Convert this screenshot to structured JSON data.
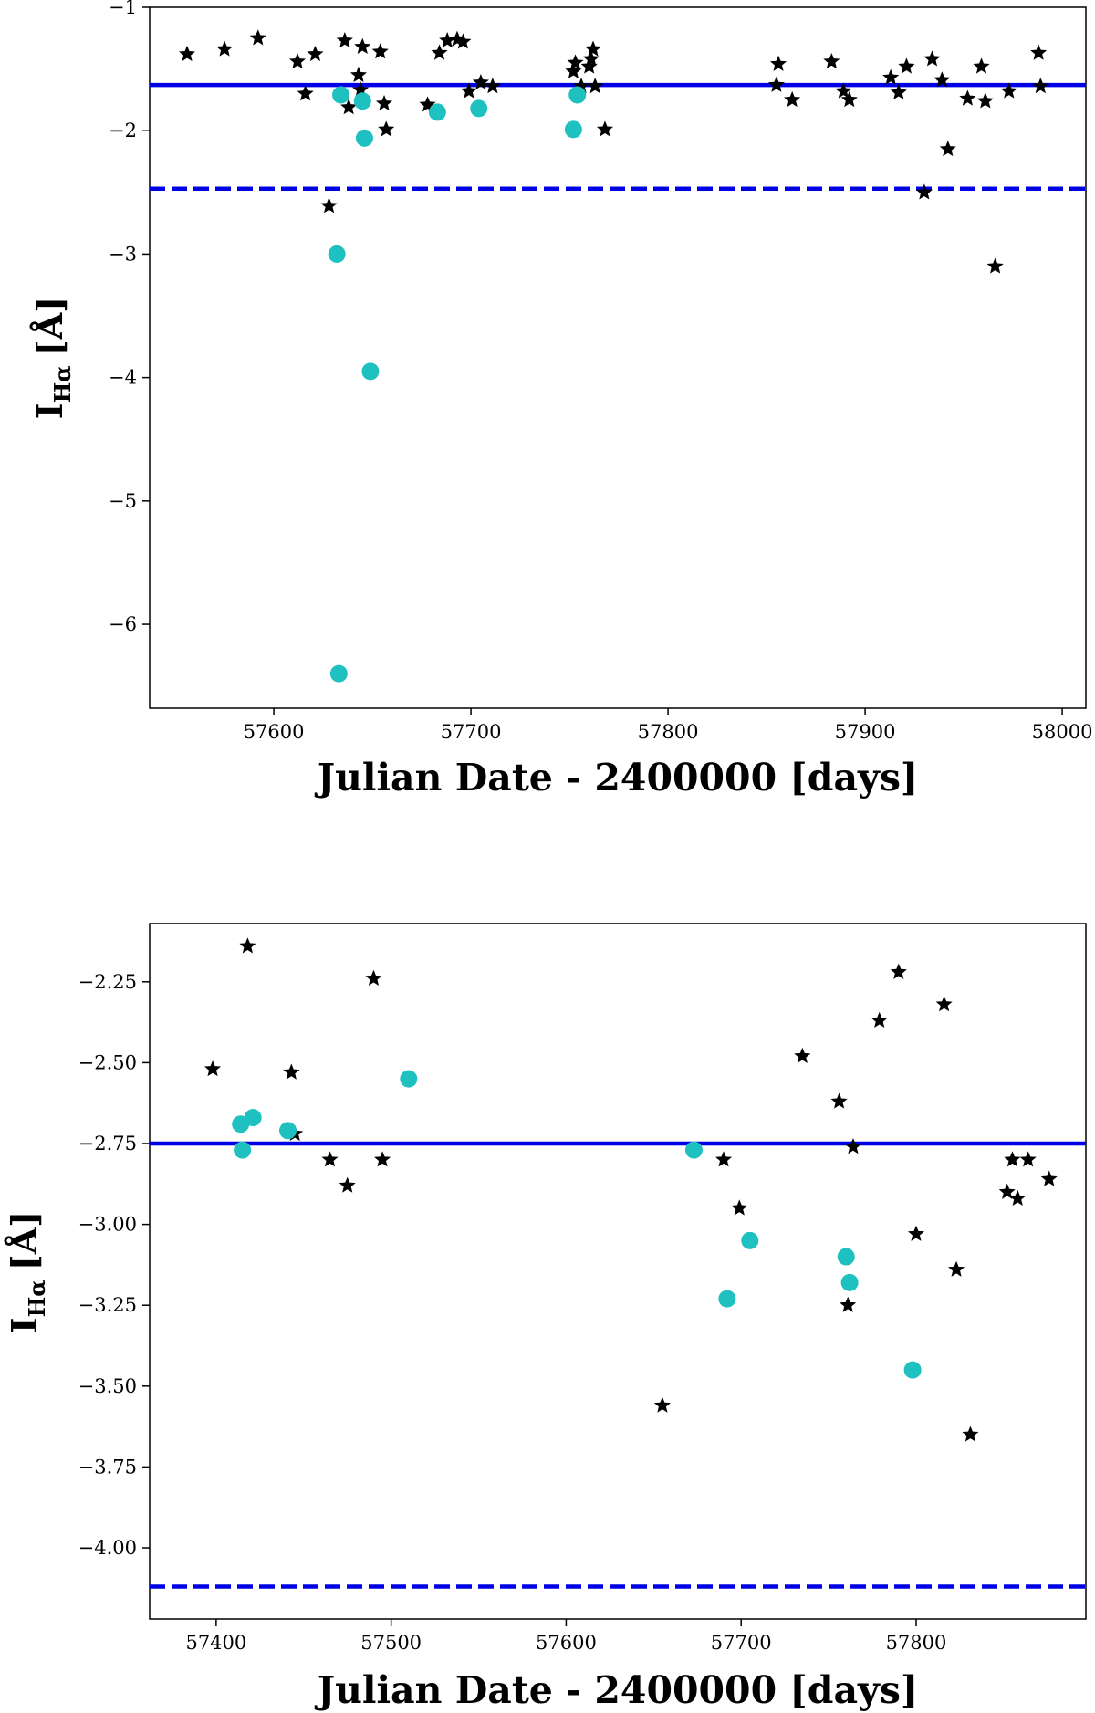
{
  "chart_data": [
    {
      "type": "scatter",
      "xlabel": "Julian Date - 2400000 [days]",
      "ylabel": "I_Hα [Å]",
      "ylabel_parts": {
        "symbol": "I",
        "subscript": "Hα",
        "unit": "[Å]"
      },
      "xlim": [
        57537,
        58012
      ],
      "ylim": [
        -6.68,
        -1.0
      ],
      "xticks": [
        57600,
        57700,
        57800,
        57900,
        58000
      ],
      "yticks": [
        -1,
        -2,
        -3,
        -4,
        -5,
        -6
      ],
      "hlines": [
        {
          "name": "mean",
          "y": -1.63,
          "style": "solid",
          "color": "#0000e6"
        },
        {
          "name": "threshold",
          "y": -2.47,
          "style": "dashed",
          "color": "#0000e6"
        }
      ],
      "series": [
        {
          "name": "black-stars",
          "marker": "star",
          "color": "#000000",
          "x": [
            57556,
            57575,
            57592,
            57612,
            57616,
            57621,
            57628,
            57636,
            57638,
            57643,
            57644,
            57645,
            57654,
            57656,
            57657,
            57678,
            57684,
            57688,
            57693,
            57696,
            57699,
            57705,
            57711,
            57752,
            57753,
            57756,
            57760,
            57761,
            57762,
            57763,
            57768,
            57855,
            57856,
            57863,
            57883,
            57889,
            57892,
            57913,
            57917,
            57921,
            57930,
            57934,
            57939,
            57942,
            57952,
            57959,
            57961,
            57966,
            57973,
            57988,
            57989
          ],
          "y": [
            -1.38,
            -1.34,
            -1.25,
            -1.44,
            -1.7,
            -1.38,
            -2.61,
            -1.27,
            -1.81,
            -1.55,
            -1.67,
            -1.32,
            -1.36,
            -1.78,
            -1.99,
            -1.79,
            -1.37,
            -1.27,
            -1.26,
            -1.28,
            -1.68,
            -1.61,
            -1.64,
            -1.52,
            -1.45,
            -1.64,
            -1.48,
            -1.42,
            -1.34,
            -1.64,
            -1.99,
            -1.63,
            -1.46,
            -1.75,
            -1.44,
            -1.68,
            -1.75,
            -1.57,
            -1.69,
            -1.48,
            -2.5,
            -1.42,
            -1.59,
            -2.15,
            -1.74,
            -1.48,
            -1.76,
            -3.1,
            -1.68,
            -1.37,
            -1.64
          ]
        },
        {
          "name": "cyan-circles",
          "marker": "circle",
          "color": "#1ec0c0",
          "x": [
            57632,
            57633,
            57634,
            57645,
            57646,
            57649,
            57683,
            57704,
            57752,
            57754
          ],
          "y": [
            -3.0,
            -6.4,
            -1.71,
            -1.76,
            -2.06,
            -3.95,
            -1.85,
            -1.82,
            -1.99,
            -1.71
          ]
        }
      ]
    },
    {
      "type": "scatter",
      "xlabel": "Julian Date - 2400000 [days]",
      "ylabel": "I_Hα [Å]",
      "ylabel_parts": {
        "symbol": "I",
        "subscript": "Hα",
        "unit": "[Å]"
      },
      "xlim": [
        57362,
        57897
      ],
      "ylim": [
        -4.22,
        -2.07
      ],
      "xticks": [
        57400,
        57500,
        57600,
        57700,
        57800
      ],
      "yticks": [
        -2.25,
        -2.5,
        -2.75,
        -3.0,
        -3.25,
        -3.5,
        -3.75,
        -4.0
      ],
      "ytick_labels": [
        "−2.25",
        "−2.50",
        "−2.75",
        "−3.00",
        "−3.25",
        "−3.50",
        "−3.75",
        "−4.00"
      ],
      "hlines": [
        {
          "name": "mean",
          "y": -2.75,
          "style": "solid",
          "color": "#0000e6"
        },
        {
          "name": "threshold",
          "y": -4.12,
          "style": "dashed",
          "color": "#0000e6"
        }
      ],
      "series": [
        {
          "name": "black-stars",
          "marker": "star",
          "color": "#000000",
          "x": [
            57398,
            57418,
            57443,
            57445,
            57465,
            57475,
            57490,
            57495,
            57655,
            57690,
            57699,
            57735,
            57756,
            57761,
            57764,
            57779,
            57790,
            57800,
            57816,
            57823,
            57831,
            57852,
            57855,
            57858,
            57864,
            57876
          ],
          "y": [
            -2.52,
            -2.14,
            -2.53,
            -2.72,
            -2.8,
            -2.88,
            -2.24,
            -2.8,
            -3.56,
            -2.8,
            -2.95,
            -2.48,
            -2.62,
            -3.25,
            -2.76,
            -2.37,
            -2.22,
            -3.03,
            -2.32,
            -3.14,
            -3.65,
            -2.9,
            -2.8,
            -2.92,
            -2.8,
            -2.86
          ]
        },
        {
          "name": "cyan-circles",
          "marker": "circle",
          "color": "#1ec0c0",
          "x": [
            57414,
            57415,
            57421,
            57441,
            57510,
            57673,
            57692,
            57705,
            57760,
            57762,
            57798
          ],
          "y": [
            -2.69,
            -2.77,
            -2.67,
            -2.71,
            -2.55,
            -2.77,
            -3.23,
            -3.05,
            -3.1,
            -3.18,
            -3.45
          ]
        }
      ]
    }
  ]
}
